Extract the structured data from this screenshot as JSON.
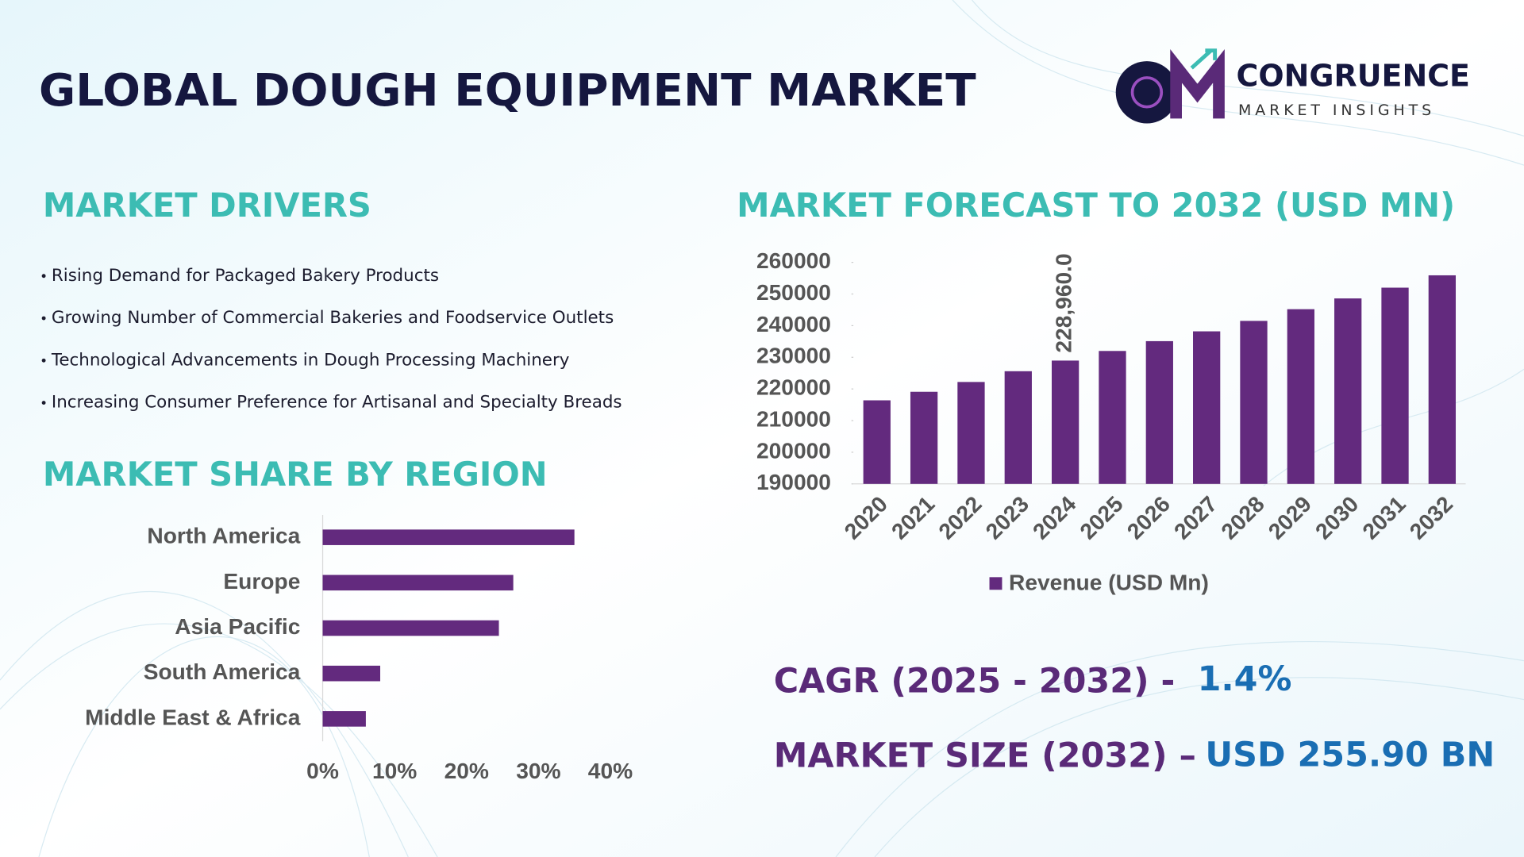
{
  "header": {
    "title": "GLOBAL DOUGH EQUIPMENT MARKET",
    "brand": "CONGRUENCE",
    "brand_tagline": "MARKET INSIGHTS"
  },
  "drivers": {
    "heading": "MARKET DRIVERS",
    "items": [
      "Rising Demand for Packaged Bakery Products",
      "Growing Number of Commercial  Bakeries and Foodservice Outlets",
      "Technological Advancements in Dough Processing Machinery",
      "Increasing Consumer Preference for Artisanal and Specialty Breads"
    ]
  },
  "chart_data": [
    {
      "type": "bar",
      "orientation": "vertical",
      "title": "MARKET FORECAST TO 2032 (USD MN)",
      "categories": [
        "2020",
        "2021",
        "2022",
        "2023",
        "2024",
        "2025",
        "2026",
        "2027",
        "2028",
        "2029",
        "2030",
        "2031",
        "2032"
      ],
      "series": [
        {
          "name": "Revenue (USD Mn)",
          "color": "#632a7e",
          "values": [
            216400,
            219100,
            222200,
            225600,
            228960,
            232000,
            235100,
            238200,
            241500,
            245200,
            248600,
            252000,
            255900
          ],
          "value_labels": [
            null,
            null,
            null,
            null,
            "228,960.0",
            null,
            null,
            null,
            null,
            null,
            null,
            null,
            null
          ]
        }
      ],
      "ylim": [
        190000,
        260000
      ],
      "yticks": [
        190000,
        200000,
        210000,
        220000,
        230000,
        240000,
        250000,
        260000
      ],
      "legend": "bottom"
    },
    {
      "type": "bar",
      "orientation": "horizontal",
      "title": "MARKET SHARE BY REGION",
      "categories": [
        "North America",
        "Europe",
        "Asia Pacific",
        "South America",
        "Middle East & Africa"
      ],
      "values": [
        35,
        26.5,
        24.5,
        8,
        6
      ],
      "color": "#632a7e",
      "xlim": [
        0,
        40
      ],
      "xticks": [
        {
          "value": 0,
          "label": "0%"
        },
        {
          "value": 10,
          "label": "10%"
        },
        {
          "value": 20,
          "label": "20%"
        },
        {
          "value": 30,
          "label": "30%"
        },
        {
          "value": 40,
          "label": "40%"
        }
      ]
    }
  ],
  "stats": {
    "cagr_label": "CAGR (2025 - 2032) -",
    "cagr_value": "1.4%",
    "size_label": "MARKET SIZE (2032) –",
    "size_value": "USD 255.90 BN"
  }
}
